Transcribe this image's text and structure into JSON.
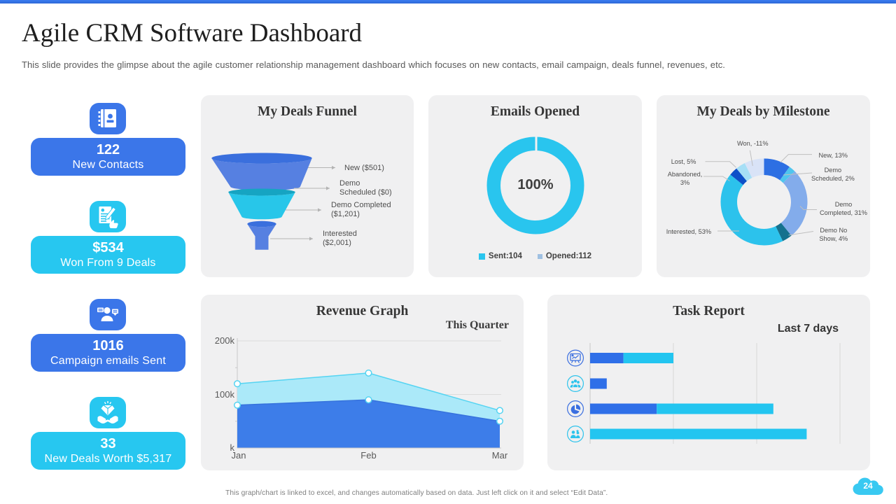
{
  "page": {
    "title": "Agile CRM Software Dashboard",
    "subtitle": "This slide provides the glimpse about the agile customer relationship management dashboard which focuses on new contacts, email campaign, deals funnel, revenues, etc.",
    "footer": "This graph/chart is linked to excel, and changes automatically based on data. Just left click on it and select “Edit Data”.",
    "page_number": "24",
    "accent_blue": "#3273e8",
    "accent_cyan": "#29c5ee"
  },
  "stats": [
    {
      "id": "new-contacts",
      "value": "122",
      "label": "New Contacts",
      "color": "#3b76e9",
      "icon": "address-book-icon"
    },
    {
      "id": "won-deals",
      "value": "$534",
      "label": "Won From 9 Deals",
      "color": "#27c7f0",
      "icon": "deal-won-icon"
    },
    {
      "id": "campaign-emails",
      "value": "1016",
      "label": "Campaign emails Sent",
      "color": "#3b76e9",
      "icon": "campaign-icon"
    },
    {
      "id": "new-deals-worth",
      "value": "33",
      "label": "New Deals Worth $5,317",
      "color": "#27c7f0",
      "icon": "deal-diamond-icon"
    }
  ],
  "chart_data": [
    {
      "id": "deals-funnel",
      "type": "funnel",
      "title": "My Deals Funnel",
      "stages": [
        {
          "name": "New",
          "value": 501,
          "label": "New ($501)",
          "label_lines": "New ($501)"
        },
        {
          "name": "Demo Scheduled",
          "value": 0,
          "label": "Demo Scheduled ($0)",
          "label_lines": "Demo\nScheduled ($0)"
        },
        {
          "name": "Demo Completed",
          "value": 1201,
          "label": "Demo Completed ($1,201)",
          "label_lines": "Demo Completed\n($1,201)"
        },
        {
          "name": "Interested",
          "value": 2001,
          "label": "Interested ($2,001)",
          "label_lines": "Interested\n($2,001)"
        }
      ],
      "segment_colors": [
        {
          "body": "#5680e1",
          "top": "#3a6fdd"
        },
        {
          "body": "#28c6e9",
          "top": "#16a4c2"
        },
        {
          "body": "#5680e1",
          "top": "#3a6fdd"
        }
      ]
    },
    {
      "id": "emails-opened",
      "type": "donut",
      "title": "Emails Opened",
      "center_label": "100%",
      "segments": [
        {
          "label": "Opened share",
          "pct": 100,
          "deg": 360,
          "color": "#29c5ee"
        }
      ],
      "legend": [
        {
          "label": "Sent:104",
          "name": "Sent",
          "value": 104,
          "color": "#29c5ee"
        },
        {
          "label": "Opened:112",
          "name": "Opened",
          "value": 112,
          "color": "#9fc0e2"
        }
      ]
    },
    {
      "id": "deals-by-milestone",
      "type": "donut",
      "title": "My Deals by Milestone",
      "segments": [
        {
          "label": "New, 13%",
          "label_lines": "New, 13%",
          "value": 13,
          "deg": 36,
          "color": "#2d6fe3"
        },
        {
          "label": "Demo Scheduled, 2%",
          "label_lines": "Demo\nScheduled, 2%",
          "value": 2,
          "deg": 9,
          "color": "#4fc5ee"
        },
        {
          "label": "Demo Completed, 31%",
          "label_lines": "Demo\nCompleted, 31%",
          "value": 31,
          "deg": 96,
          "color": "#83aceb"
        },
        {
          "label": "Demo No Show, 4%",
          "label_lines": "Demo No\nShow, 4%",
          "value": 4,
          "deg": 13.5,
          "color": "#15718e"
        },
        {
          "label": "Interested, 53%",
          "label_lines": "Interested, 53%",
          "value": 53,
          "deg": 154.5,
          "color": "#2cc2ec"
        },
        {
          "label": "Abandoned, 3%",
          "label_lines": "Abandoned,\n3%",
          "value": 3,
          "deg": 11.5,
          "color": "#0e50c8"
        },
        {
          "label": "Lost, 5%",
          "label_lines": "Lost, 5%",
          "value": 5,
          "deg": 13,
          "color": "#a6dff6"
        },
        {
          "label": "Won, -11%",
          "label_lines": "Won, -11%",
          "value": -11,
          "deg": 26.5,
          "color": "#d9e3f7"
        }
      ]
    },
    {
      "id": "revenue-graph",
      "type": "area",
      "title": "Revenue Graph",
      "subtitle": "This Quarter",
      "x": [
        "Jan",
        "Feb",
        "Mar"
      ],
      "series": [
        {
          "name": "revenue-upper",
          "values": [
            120,
            140,
            70
          ],
          "line_color": "#55d4f2",
          "fill_color": "#abe9f9"
        },
        {
          "name": "revenue-lower",
          "values": [
            80,
            90,
            50
          ],
          "line_color": "#3672dd",
          "fill_color": "#3d7de9"
        }
      ],
      "marker": {
        "fill": "#ffffff",
        "stroke": "#55d4f2"
      },
      "ylim": [
        0,
        200
      ],
      "yticks": [
        {
          "label": "200k",
          "value": 200
        },
        {
          "label": "100k",
          "value": 100
        },
        {
          "label": "k",
          "value": 0
        }
      ],
      "grid": true
    },
    {
      "id": "task-report",
      "type": "bar",
      "title": "Task Report",
      "subtitle": "Last 7 days",
      "axis_max": 3,
      "gridline_count": 4,
      "rows": [
        {
          "icon": "presentation-icon",
          "icon_color": "#3b6fe0",
          "segments": [
            {
              "color": "#2f6fe8",
              "value": 0.4
            },
            {
              "color": "#23c5f0",
              "value": 0.6
            }
          ]
        },
        {
          "icon": "people-icon",
          "icon_color": "#2cc3ec",
          "segments": [
            {
              "color": "#2f6fe8",
              "value": 0.2
            }
          ]
        },
        {
          "icon": "pie-chart-icon",
          "icon_color": "#3b6fe0",
          "segments": [
            {
              "color": "#2f6fe8",
              "value": 0.8
            },
            {
              "color": "#23c5f0",
              "value": 1.4
            }
          ]
        },
        {
          "icon": "team-icon",
          "icon_color": "#2cc3ec",
          "segments": [
            {
              "color": "#23c5f0",
              "value": 2.6
            }
          ]
        }
      ]
    }
  ]
}
